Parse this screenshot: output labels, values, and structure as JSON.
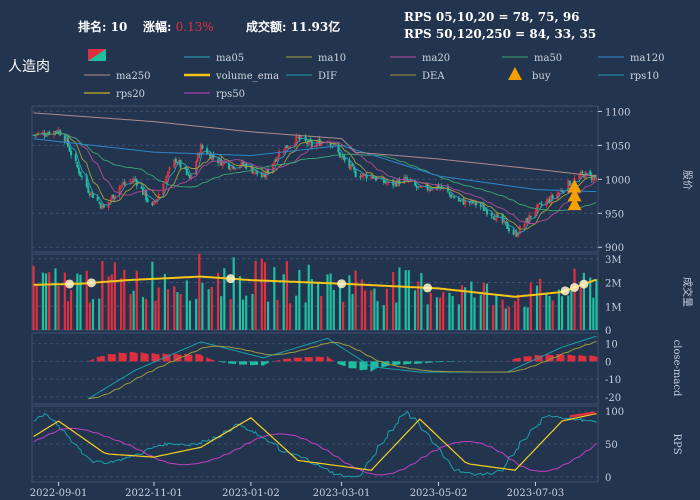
{
  "header": {
    "rank_label": "排名:",
    "rank_value": "10",
    "change_label": "涨幅:",
    "change_value": "0.13%",
    "volume_label": "成交额:",
    "volume_value": "11.93亿",
    "rps_line1": "RPS 05,10,20 = 78, 75, 96",
    "rps_line2": "RPS 50,120,250 = 84, 33, 35"
  },
  "stock_name": "人造肉",
  "legend": [
    {
      "label": "",
      "color": "#e0303f",
      "kind": "candle"
    },
    {
      "label": "ma05",
      "color": "#2aa3b8",
      "kind": "line"
    },
    {
      "label": "ma10",
      "color": "#a0a23c",
      "kind": "line"
    },
    {
      "label": "ma20",
      "color": "#b04c9c",
      "kind": "line"
    },
    {
      "label": "ma50",
      "color": "#3aa870",
      "kind": "line"
    },
    {
      "label": "ma120",
      "color": "#2e86c8",
      "kind": "line"
    },
    {
      "label": "ma250",
      "color": "#b08a8a",
      "kind": "line"
    },
    {
      "label": "volume_ema",
      "color": "#f5c518",
      "kind": "thick"
    },
    {
      "label": "DIF",
      "color": "#1aa0a8",
      "kind": "line"
    },
    {
      "label": "DEA",
      "color": "#a09a40",
      "kind": "line"
    },
    {
      "label": "buy",
      "color": "#f5a000",
      "kind": "triangle"
    },
    {
      "label": "rps10",
      "color": "#1aa0a8",
      "kind": "line"
    },
    {
      "label": "rps20",
      "color": "#f5d020",
      "kind": "line"
    },
    {
      "label": "rps50",
      "color": "#c040c0",
      "kind": "line"
    }
  ],
  "x_ticks": [
    "2022-09-01",
    "2022-11-01",
    "2023-01-02",
    "2023-03-01",
    "2023-05-02",
    "2023-07-03"
  ],
  "colors": {
    "up": "#e0303f",
    "down": "#1fc0a0",
    "grid": "#3d5070",
    "axis": "#c8d0dc",
    "bg": "#23344f"
  },
  "chart_data": [
    {
      "type": "candlestick",
      "ylabel": "股价",
      "y_ticks": [
        900,
        950,
        1000,
        1050,
        1100
      ],
      "ylim": [
        893,
        1108
      ],
      "price_path": [
        {
          "date": "2022-08-15",
          "value": 1065
        },
        {
          "date": "2022-09-01",
          "value": 1072
        },
        {
          "date": "2022-09-05",
          "value": 1060
        },
        {
          "date": "2022-09-12",
          "value": 1022
        },
        {
          "date": "2022-09-20",
          "value": 985
        },
        {
          "date": "2022-09-30",
          "value": 957
        },
        {
          "date": "2022-10-10",
          "value": 990
        },
        {
          "date": "2022-10-20",
          "value": 1000
        },
        {
          "date": "2022-10-31",
          "value": 958
        },
        {
          "date": "2022-11-08",
          "value": 1000
        },
        {
          "date": "2022-11-15",
          "value": 1030
        },
        {
          "date": "2022-11-24",
          "value": 1000
        },
        {
          "date": "2022-12-01",
          "value": 1048
        },
        {
          "date": "2022-12-10",
          "value": 1030
        },
        {
          "date": "2022-12-20",
          "value": 1020
        },
        {
          "date": "2022-12-29",
          "value": 1022
        },
        {
          "date": "2023-01-10",
          "value": 1002
        },
        {
          "date": "2023-01-20",
          "value": 1040
        },
        {
          "date": "2023-02-01",
          "value": 1060
        },
        {
          "date": "2023-02-10",
          "value": 1050
        },
        {
          "date": "2023-02-20",
          "value": 1060
        },
        {
          "date": "2023-03-01",
          "value": 1032
        },
        {
          "date": "2023-03-10",
          "value": 1008
        },
        {
          "date": "2023-03-20",
          "value": 1005
        },
        {
          "date": "2023-04-01",
          "value": 992
        },
        {
          "date": "2023-04-10",
          "value": 1000
        },
        {
          "date": "2023-04-20",
          "value": 985
        },
        {
          "date": "2023-05-02",
          "value": 990
        },
        {
          "date": "2023-05-15",
          "value": 968
        },
        {
          "date": "2023-05-25",
          "value": 965
        },
        {
          "date": "2023-06-05",
          "value": 950
        },
        {
          "date": "2023-06-15",
          "value": 930
        },
        {
          "date": "2023-06-20",
          "value": 918
        },
        {
          "date": "2023-07-03",
          "value": 955
        },
        {
          "date": "2023-07-15",
          "value": 975
        },
        {
          "date": "2023-07-25",
          "value": 995
        },
        {
          "date": "2023-08-03",
          "value": 1008
        },
        {
          "date": "2023-08-10",
          "value": 1002
        }
      ],
      "ma250_path": [
        {
          "date": "2022-08-15",
          "value": 1098
        },
        {
          "date": "2022-11-01",
          "value": 1085
        },
        {
          "date": "2023-01-02",
          "value": 1070
        },
        {
          "date": "2023-03-01",
          "value": 1060
        },
        {
          "date": "2023-03-10",
          "value": 1040
        },
        {
          "date": "2023-05-02",
          "value": 1030
        },
        {
          "date": "2023-07-03",
          "value": 1015
        },
        {
          "date": "2023-08-10",
          "value": 1005
        }
      ],
      "ma120_path": [
        {
          "date": "2022-08-15",
          "value": 1060
        },
        {
          "date": "2022-11-01",
          "value": 1040
        },
        {
          "date": "2023-01-02",
          "value": 1035
        },
        {
          "date": "2023-03-01",
          "value": 1050
        },
        {
          "date": "2023-05-02",
          "value": 1005
        },
        {
          "date": "2023-07-03",
          "value": 985
        },
        {
          "date": "2023-08-10",
          "value": 982
        }
      ],
      "buy_signals": [
        {
          "date": "2023-07-28",
          "value": 988
        },
        {
          "date": "2023-07-28",
          "value": 975
        },
        {
          "date": "2023-07-28",
          "value": 962
        }
      ]
    },
    {
      "type": "bar",
      "ylabel": "成交量",
      "y_ticks": [
        "0",
        "1M",
        "2M",
        "3M"
      ],
      "ylim": [
        0,
        3200000
      ],
      "ema_path": [
        {
          "date": "2022-08-15",
          "value": 1900000
        },
        {
          "date": "2022-09-15",
          "value": 1950000
        },
        {
          "date": "2022-10-15",
          "value": 2100000
        },
        {
          "date": "2022-12-01",
          "value": 2250000
        },
        {
          "date": "2023-01-02",
          "value": 2100000
        },
        {
          "date": "2023-03-01",
          "value": 1950000
        },
        {
          "date": "2023-05-02",
          "value": 1750000
        },
        {
          "date": "2023-06-20",
          "value": 1400000
        },
        {
          "date": "2023-07-20",
          "value": 1600000
        },
        {
          "date": "2023-08-10",
          "value": 2100000
        }
      ]
    },
    {
      "type": "line",
      "ylabel": "close-macd",
      "y_ticks": [
        10,
        0,
        -10,
        -20
      ],
      "ylim": [
        -24,
        16
      ],
      "dif_path": [
        {
          "date": "2022-09-20",
          "value": -21
        },
        {
          "date": "2022-10-20",
          "value": -5
        },
        {
          "date": "2022-12-01",
          "value": 11
        },
        {
          "date": "2023-01-10",
          "value": 2
        },
        {
          "date": "2023-02-20",
          "value": 13
        },
        {
          "date": "2023-03-20",
          "value": -3
        },
        {
          "date": "2023-04-20",
          "value": -6
        },
        {
          "date": "2023-06-15",
          "value": -6
        },
        {
          "date": "2023-07-20",
          "value": 8
        },
        {
          "date": "2023-08-10",
          "value": 14
        }
      ]
    },
    {
      "type": "line",
      "ylabel": "RPS",
      "y_ticks": [
        0,
        50,
        100
      ],
      "ylim": [
        -8,
        108
      ],
      "rps20_path": [
        {
          "date": "2022-08-15",
          "value": 60
        },
        {
          "date": "2022-09-01",
          "value": 85
        },
        {
          "date": "2022-10-01",
          "value": 35
        },
        {
          "date": "2022-11-01",
          "value": 30
        },
        {
          "date": "2022-12-01",
          "value": 45
        },
        {
          "date": "2023-01-02",
          "value": 90
        },
        {
          "date": "2023-02-01",
          "value": 25
        },
        {
          "date": "2023-03-20",
          "value": 10
        },
        {
          "date": "2023-04-20",
          "value": 88
        },
        {
          "date": "2023-05-20",
          "value": 20
        },
        {
          "date": "2023-06-20",
          "value": 10
        },
        {
          "date": "2023-07-20",
          "value": 85
        },
        {
          "date": "2023-08-10",
          "value": 96
        }
      ]
    }
  ]
}
